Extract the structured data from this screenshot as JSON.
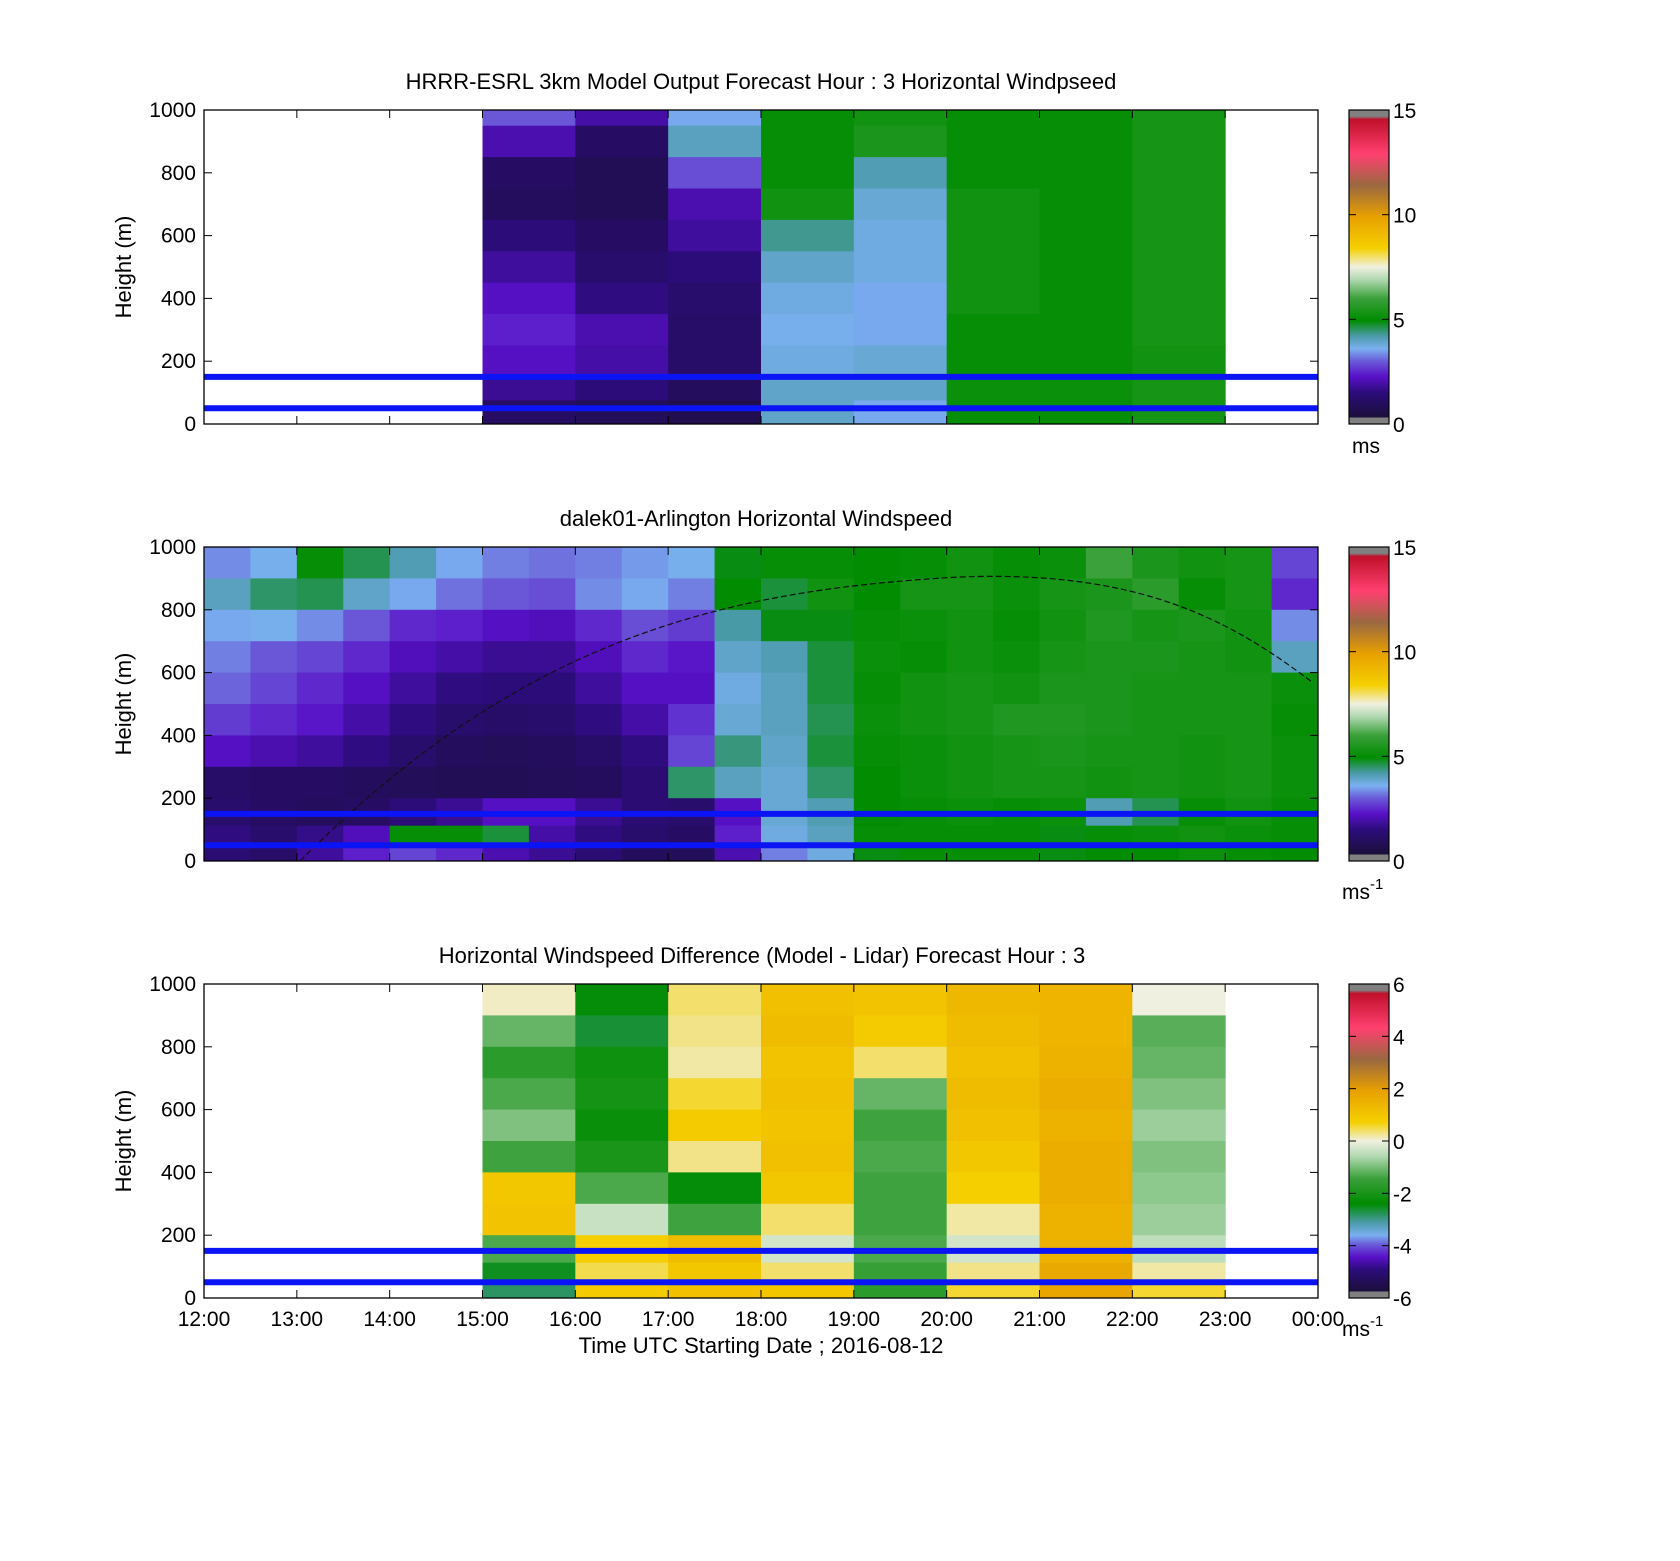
{
  "figure": {
    "xlabel": "Time UTC  Starting Date ; 2016-08-12",
    "x_ticks": [
      "12:00",
      "13:00",
      "14:00",
      "15:00",
      "16:00",
      "17:00",
      "18:00",
      "19:00",
      "20:00",
      "21:00",
      "22:00",
      "23:00",
      "00:00"
    ],
    "y_ticks": [
      "0",
      "200",
      "400",
      "600",
      "800",
      "1000"
    ],
    "ylabel": "Height (m)"
  },
  "chart_data": [
    {
      "id": "model",
      "type": "heatmap",
      "title": "HRRR-ESRL 3km Model Output   Forecast Hour : 3 Horizontal Windpseed",
      "ylabel": "Height (m)",
      "xlim": [
        "12:00",
        "00:00"
      ],
      "ylim": [
        0,
        1000
      ],
      "colorbar": {
        "ticks": [
          "0",
          "5",
          "10",
          "15"
        ],
        "range": [
          0,
          15
        ],
        "unit": "ms",
        "unit_sup": ""
      },
      "reference_lines_m": [
        50,
        150
      ],
      "heights_m": [
        1000,
        900,
        800,
        700,
        600,
        500,
        400,
        300,
        200,
        100,
        50
      ],
      "columns": [
        {
          "hour": "15:00",
          "speeds": [
            2.8,
            1.8,
            0.8,
            0.7,
            1.2,
            1.6,
            2.0,
            2.2,
            2.0,
            1.5,
            0.8
          ]
        },
        {
          "hour": "16:00",
          "speeds": [
            1.7,
            0.8,
            0.5,
            0.5,
            0.8,
            1.0,
            1.3,
            1.8,
            1.7,
            1.2,
            0.6
          ]
        },
        {
          "hour": "17:00",
          "speeds": [
            3.4,
            3.9,
            2.7,
            1.8,
            1.6,
            1.2,
            1.0,
            0.9,
            0.9,
            0.7,
            0.4
          ]
        },
        {
          "hour": "18:00",
          "speeds": [
            5.0,
            5.0,
            5.0,
            5.2,
            4.2,
            3.8,
            3.6,
            3.5,
            3.6,
            3.8,
            3.8
          ]
        },
        {
          "hour": "19:00",
          "speeds": [
            5.2,
            5.4,
            4.0,
            3.7,
            3.6,
            3.6,
            3.4,
            3.4,
            3.7,
            3.8,
            3.4
          ]
        },
        {
          "hour": "20:00",
          "speeds": [
            5.0,
            5.0,
            5.0,
            5.2,
            5.2,
            5.2,
            5.2,
            5.0,
            5.0,
            5.1,
            5.0
          ]
        },
        {
          "hour": "21:00",
          "speeds": [
            5.0,
            5.0,
            5.0,
            5.0,
            5.0,
            5.0,
            5.0,
            5.0,
            5.0,
            5.1,
            5.0
          ]
        },
        {
          "hour": "22:00",
          "speeds": [
            5.3,
            5.3,
            5.3,
            5.3,
            5.3,
            5.3,
            5.3,
            5.3,
            5.2,
            5.3,
            5.3
          ]
        }
      ]
    },
    {
      "id": "lidar",
      "type": "heatmap",
      "title": "dalek01-Arlington  Horizontal Windspeed",
      "ylabel": "Height (m)",
      "xlim": [
        "12:00",
        "00:00"
      ],
      "ylim": [
        0,
        1000
      ],
      "colorbar": {
        "ticks": [
          "0",
          "5",
          "10",
          "15"
        ],
        "range": [
          0,
          15
        ],
        "unit": "ms",
        "unit_sup": "-1"
      },
      "reference_lines_m": [
        50,
        150
      ],
      "heights_m": [
        950,
        850,
        750,
        650,
        550,
        450,
        350,
        250,
        150,
        75,
        25
      ],
      "time_hours": [
        "12:00",
        "12:30",
        "13:00",
        "13:30",
        "14:00",
        "14:30",
        "15:00",
        "15:30",
        "16:00",
        "16:30",
        "17:00",
        "17:30",
        "18:00",
        "18:30",
        "19:00",
        "19:30",
        "20:00",
        "20:30",
        "21:00",
        "21:30",
        "22:00",
        "22:30",
        "23:00",
        "23:30"
      ],
      "speeds": [
        [
          3.2,
          3.5,
          5.0,
          4.5,
          4.0,
          3.4,
          3.1,
          3.0,
          3.1,
          3.3,
          3.5,
          4.8,
          5.0,
          5.0,
          4.9,
          5.0,
          5.2,
          5.0,
          5.1,
          6.0,
          5.4,
          5.2,
          5.3,
          2.6
        ],
        [
          3.9,
          4.4,
          4.5,
          3.8,
          3.4,
          3.0,
          2.8,
          2.7,
          3.2,
          3.4,
          3.1,
          4.9,
          4.6,
          5.2,
          4.9,
          5.3,
          5.3,
          5.1,
          5.3,
          5.4,
          5.7,
          5.0,
          5.3,
          2.3
        ],
        [
          3.4,
          3.5,
          3.2,
          2.8,
          2.3,
          2.2,
          2.0,
          1.9,
          2.3,
          2.7,
          2.5,
          4.1,
          4.8,
          4.8,
          5.0,
          5.1,
          5.2,
          5.0,
          5.2,
          5.5,
          5.3,
          5.4,
          5.2,
          3.2
        ],
        [
          3.1,
          2.8,
          2.6,
          2.3,
          1.9,
          1.7,
          1.5,
          1.5,
          1.9,
          2.3,
          2.1,
          3.8,
          4.0,
          4.6,
          5.1,
          5.0,
          5.2,
          5.1,
          5.3,
          5.4,
          5.4,
          5.3,
          5.2,
          3.9
        ],
        [
          2.9,
          2.6,
          2.3,
          2.0,
          1.6,
          1.3,
          1.2,
          1.2,
          1.6,
          2.0,
          2.0,
          3.6,
          3.9,
          4.6,
          5.0,
          5.2,
          5.3,
          5.2,
          5.4,
          5.4,
          5.3,
          5.3,
          5.3,
          5.1
        ],
        [
          2.5,
          2.3,
          2.1,
          1.7,
          1.3,
          1.0,
          0.9,
          1.0,
          1.3,
          1.7,
          2.4,
          3.7,
          3.9,
          4.5,
          5.1,
          5.2,
          5.3,
          5.5,
          5.5,
          5.4,
          5.3,
          5.3,
          5.3,
          5.0
        ],
        [
          2.0,
          1.8,
          1.6,
          1.3,
          1.0,
          0.7,
          0.6,
          0.7,
          0.9,
          1.3,
          2.6,
          4.3,
          3.8,
          4.6,
          5.0,
          5.1,
          5.2,
          5.3,
          5.4,
          5.3,
          5.3,
          5.2,
          5.3,
          5.1
        ],
        [
          0.9,
          0.8,
          0.8,
          0.7,
          0.6,
          0.5,
          0.5,
          0.6,
          0.7,
          1.1,
          4.4,
          3.9,
          3.7,
          4.4,
          4.9,
          5.1,
          5.2,
          5.3,
          5.3,
          5.2,
          5.3,
          5.2,
          5.3,
          5.1
        ],
        [
          1.0,
          0.8,
          0.7,
          0.8,
          1.2,
          1.5,
          2.0,
          2.0,
          1.5,
          1.1,
          1.0,
          2.0,
          3.7,
          4.0,
          4.9,
          5.0,
          5.1,
          5.0,
          5.1,
          4.0,
          4.5,
          5.0,
          5.2,
          5.0
        ],
        [
          1.3,
          1.0,
          1.4,
          1.9,
          5.0,
          5.0,
          4.6,
          1.7,
          1.3,
          1.0,
          0.8,
          2.2,
          3.6,
          3.9,
          5.0,
          5.0,
          5.0,
          5.0,
          4.8,
          5.0,
          5.1,
          5.2,
          5.1,
          5.0
        ],
        [
          1.1,
          0.9,
          1.6,
          2.2,
          2.6,
          2.3,
          1.8,
          1.5,
          1.1,
          0.7,
          0.6,
          1.8,
          3.1,
          3.6,
          4.8,
          5.0,
          5.0,
          5.0,
          4.8,
          4.9,
          4.9,
          5.1,
          5.0,
          4.9
        ]
      ]
    },
    {
      "id": "difference",
      "type": "heatmap",
      "title": "Horizontal Windspeed Difference (Model - Lidar) Forecast Hour : 3",
      "ylabel": "Height (m)",
      "xlim": [
        "12:00",
        "00:00"
      ],
      "ylim": [
        0,
        1000
      ],
      "colorbar": {
        "ticks": [
          "-6",
          "-4",
          "-2",
          "0",
          "2",
          "4",
          "6"
        ],
        "range": [
          -6,
          6
        ],
        "unit": "ms",
        "unit_sup": "-1"
      },
      "reference_lines_m": [
        50,
        150
      ],
      "heights_m": [
        950,
        850,
        750,
        650,
        550,
        450,
        350,
        250,
        150,
        75,
        25
      ],
      "columns": [
        {
          "hour": "15:00",
          "diffs": [
            0.1,
            -1.2,
            -1.8,
            -1.4,
            -1.0,
            -1.5,
            1.0,
            1.1,
            -1.4,
            -2.7,
            -3.0
          ]
        },
        {
          "hour": "16:00",
          "diffs": [
            -2.6,
            -2.8,
            -2.3,
            -2.2,
            -2.4,
            -2.1,
            -1.4,
            -0.4,
            0.8,
            0.5,
            0.9
          ]
        },
        {
          "hour": "17:00",
          "diffs": [
            0.4,
            0.3,
            0.2,
            0.6,
            0.9,
            0.3,
            -2.6,
            -1.5,
            1.3,
            1.0,
            1.2
          ]
        },
        {
          "hour": "18:00",
          "diffs": [
            1.2,
            1.3,
            1.1,
            1.2,
            1.1,
            1.2,
            1.0,
            0.4,
            -0.3,
            0.4,
            1.0
          ]
        },
        {
          "hour": "19:00",
          "diffs": [
            1.1,
            0.9,
            0.4,
            -1.2,
            -1.5,
            -1.4,
            -1.5,
            -1.5,
            -1.4,
            -1.6,
            -1.8
          ]
        },
        {
          "hour": "20:00",
          "diffs": [
            1.4,
            1.3,
            1.2,
            1.3,
            1.2,
            1.0,
            0.8,
            0.2,
            -0.3,
            0.3,
            0.6
          ]
        },
        {
          "hour": "21:00",
          "diffs": [
            1.5,
            1.5,
            1.6,
            1.7,
            1.6,
            1.7,
            1.7,
            1.6,
            1.6,
            1.8,
            1.9
          ]
        },
        {
          "hour": "22:00",
          "diffs": [
            0,
            -1.3,
            -1.2,
            -1.0,
            -0.8,
            -1.0,
            -0.9,
            -0.8,
            -0.5,
            0.2,
            0.6
          ]
        }
      ]
    }
  ]
}
